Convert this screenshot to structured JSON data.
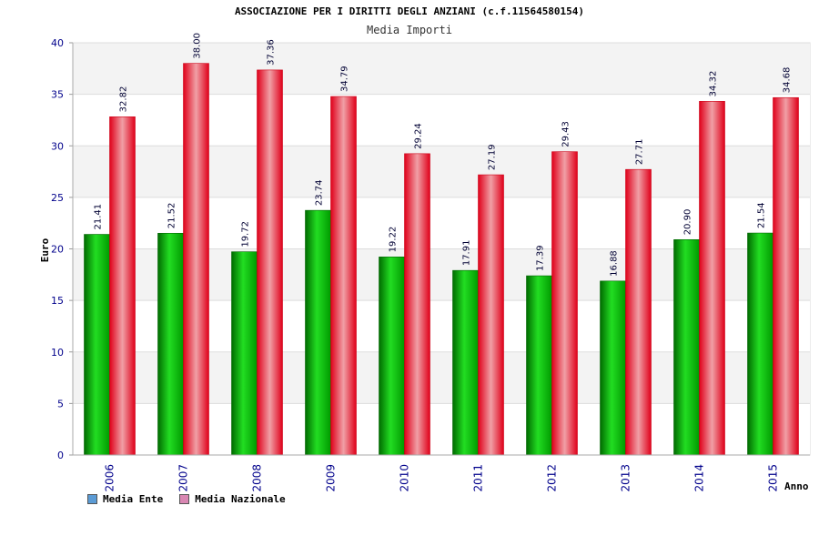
{
  "title": "ASSOCIAZIONE PER I DIRITTI DEGLI ANZIANI (c.f.11564580154)",
  "subtitle": "Media Importi",
  "colors": {
    "series1_dark": "#006b00",
    "series1_light": "#22dd22",
    "series2_dark": "#e0001a",
    "series2_light": "#f5a3a8",
    "swatch1": "#5b9bd5",
    "swatch2": "#d987b3",
    "axis_text": "#00008b"
  },
  "chart_data": {
    "type": "bar",
    "title": "ASSOCIAZIONE PER I DIRITTI DEGLI ANZIANI (c.f.11564580154)",
    "subtitle": "Media Importi",
    "xlabel": "Anno",
    "ylabel": "Euro",
    "ylim": [
      0,
      40
    ],
    "yticks": [
      0,
      5,
      10,
      15,
      20,
      25,
      30,
      35,
      40
    ],
    "categories": [
      "2006",
      "2007",
      "2008",
      "2009",
      "2010",
      "2011",
      "2012",
      "2013",
      "2014",
      "2015"
    ],
    "series": [
      {
        "name": "Media Ente",
        "values": [
          21.41,
          21.52,
          19.72,
          23.74,
          19.22,
          17.91,
          17.39,
          16.88,
          20.9,
          21.54
        ],
        "labels": [
          "21.41",
          "21.52",
          "19.72",
          "23.74",
          "19.22",
          "17.91",
          "17.39",
          "16.88",
          "20.90",
          "21.54"
        ]
      },
      {
        "name": "Media Nazionale",
        "values": [
          32.82,
          38.0,
          37.36,
          34.79,
          29.24,
          27.19,
          29.43,
          27.71,
          34.32,
          34.68
        ],
        "labels": [
          "32.82",
          "38.00",
          "37.36",
          "34.79",
          "29.24",
          "27.19",
          "29.43",
          "27.71",
          "34.32",
          "34.68"
        ]
      }
    ],
    "grid": true,
    "legend_position": "bottom-left"
  }
}
